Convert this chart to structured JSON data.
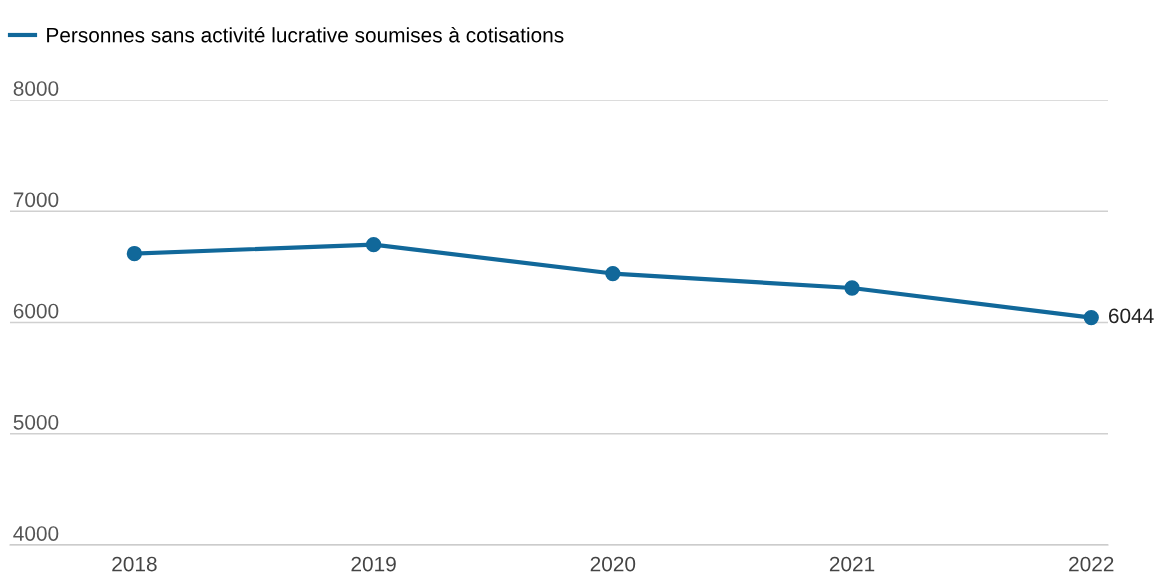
{
  "chart_data": {
    "type": "line",
    "categories": [
      "2018",
      "2019",
      "2020",
      "2021",
      "2022"
    ],
    "series": [
      {
        "name": "Personnes sans activité lucrative soumises à cotisations",
        "color": "#11689a",
        "values": [
          6620,
          6700,
          6440,
          6310,
          6044
        ],
        "value_labels": [
          null,
          null,
          null,
          null,
          "6044"
        ]
      }
    ],
    "ylim": [
      4000,
      8000
    ],
    "yticks": [
      4000,
      5000,
      6000,
      7000,
      8000
    ],
    "grid": "y",
    "legend": "top left",
    "marker": "circle",
    "line_style": "solid"
  }
}
